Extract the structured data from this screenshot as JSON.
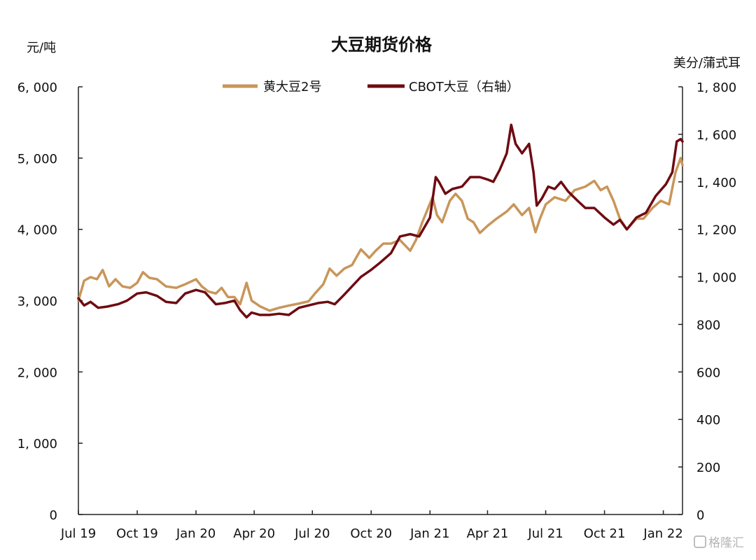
{
  "chart_data": {
    "type": "line",
    "title": "大豆期货价格",
    "left_axis_unit": "元/吨",
    "right_axis_unit": "美分/蒲式耳",
    "x_range": [
      "2019-07-01",
      "2022-01-31"
    ],
    "x_ticks": [
      "Jul 19",
      "Oct 19",
      "Jan 20",
      "Apr 20",
      "Jul 20",
      "Oct 20",
      "Jan 21",
      "Apr 21",
      "Jul 21",
      "Oct 21",
      "Jan 22"
    ],
    "x_tick_dates": [
      "2019-07-01",
      "2019-10-01",
      "2020-01-01",
      "2020-04-01",
      "2020-07-01",
      "2020-10-01",
      "2021-01-01",
      "2021-04-01",
      "2021-07-01",
      "2021-10-01",
      "2022-01-01"
    ],
    "y_left": {
      "min": 0,
      "max": 6000,
      "ticks": [
        0,
        1000,
        2000,
        3000,
        4000,
        5000,
        6000
      ],
      "tick_labels": [
        "0",
        "1, 000",
        "2, 000",
        "3, 000",
        "4, 000",
        "5, 000",
        "6, 000"
      ]
    },
    "y_right": {
      "min": 0,
      "max": 1800,
      "ticks": [
        0,
        200,
        400,
        600,
        800,
        1000,
        1200,
        1400,
        1600,
        1800
      ],
      "tick_labels": [
        "0",
        "200",
        "400",
        "600",
        "800",
        "1, 000",
        "1, 200",
        "1, 400",
        "1, 600",
        "1, 800"
      ]
    },
    "grid": false,
    "legend_position": "top-center",
    "series": [
      {
        "name": "黄大豆2号",
        "axis": "left",
        "color": "#C8965A",
        "points": [
          [
            "2019-07-01",
            3000
          ],
          [
            "2019-07-10",
            3280
          ],
          [
            "2019-07-20",
            3330
          ],
          [
            "2019-07-30",
            3300
          ],
          [
            "2019-08-08",
            3430
          ],
          [
            "2019-08-18",
            3200
          ],
          [
            "2019-08-28",
            3300
          ],
          [
            "2019-09-08",
            3200
          ],
          [
            "2019-09-20",
            3180
          ],
          [
            "2019-10-01",
            3250
          ],
          [
            "2019-10-10",
            3400
          ],
          [
            "2019-10-20",
            3320
          ],
          [
            "2019-11-01",
            3300
          ],
          [
            "2019-11-15",
            3200
          ],
          [
            "2019-12-01",
            3180
          ],
          [
            "2019-12-15",
            3230
          ],
          [
            "2020-01-01",
            3300
          ],
          [
            "2020-01-10",
            3200
          ],
          [
            "2020-01-20",
            3130
          ],
          [
            "2020-02-01",
            3100
          ],
          [
            "2020-02-10",
            3180
          ],
          [
            "2020-02-20",
            3050
          ],
          [
            "2020-03-01",
            3050
          ],
          [
            "2020-03-10",
            2950
          ],
          [
            "2020-03-20",
            3250
          ],
          [
            "2020-03-28",
            3000
          ],
          [
            "2020-04-10",
            2920
          ],
          [
            "2020-04-25",
            2860
          ],
          [
            "2020-05-10",
            2900
          ],
          [
            "2020-05-25",
            2930
          ],
          [
            "2020-06-10",
            2960
          ],
          [
            "2020-06-25",
            2990
          ],
          [
            "2020-07-05",
            3100
          ],
          [
            "2020-07-18",
            3230
          ],
          [
            "2020-07-28",
            3450
          ],
          [
            "2020-08-08",
            3350
          ],
          [
            "2020-08-20",
            3450
          ],
          [
            "2020-09-01",
            3500
          ],
          [
            "2020-09-15",
            3720
          ],
          [
            "2020-09-28",
            3600
          ],
          [
            "2020-10-08",
            3700
          ],
          [
            "2020-10-20",
            3800
          ],
          [
            "2020-11-01",
            3800
          ],
          [
            "2020-11-15",
            3850
          ],
          [
            "2020-12-01",
            3700
          ],
          [
            "2020-12-10",
            3850
          ],
          [
            "2020-12-20",
            4100
          ],
          [
            "2021-01-05",
            4450
          ],
          [
            "2021-01-12",
            4200
          ],
          [
            "2021-01-20",
            4100
          ],
          [
            "2021-02-01",
            4400
          ],
          [
            "2021-02-10",
            4500
          ],
          [
            "2021-02-20",
            4400
          ],
          [
            "2021-03-01",
            4150
          ],
          [
            "2021-03-10",
            4100
          ],
          [
            "2021-03-20",
            3950
          ],
          [
            "2021-04-01",
            4050
          ],
          [
            "2021-04-15",
            4150
          ],
          [
            "2021-05-01",
            4250
          ],
          [
            "2021-05-12",
            4350
          ],
          [
            "2021-05-25",
            4200
          ],
          [
            "2021-06-05",
            4300
          ],
          [
            "2021-06-15",
            3960
          ],
          [
            "2021-06-22",
            4150
          ],
          [
            "2021-07-01",
            4350
          ],
          [
            "2021-07-15",
            4450
          ],
          [
            "2021-08-01",
            4400
          ],
          [
            "2021-08-15",
            4550
          ],
          [
            "2021-09-01",
            4600
          ],
          [
            "2021-09-15",
            4680
          ],
          [
            "2021-09-25",
            4550
          ],
          [
            "2021-10-05",
            4600
          ],
          [
            "2021-10-15",
            4400
          ],
          [
            "2021-10-25",
            4150
          ],
          [
            "2021-11-05",
            4000
          ],
          [
            "2021-11-20",
            4150
          ],
          [
            "2021-12-01",
            4150
          ],
          [
            "2021-12-15",
            4300
          ],
          [
            "2021-12-28",
            4400
          ],
          [
            "2022-01-10",
            4350
          ],
          [
            "2022-01-20",
            4800
          ],
          [
            "2022-01-28",
            5000
          ],
          [
            "2022-01-31",
            4900
          ]
        ]
      },
      {
        "name": "CBOT大豆（右轴）",
        "axis": "right",
        "color": "#6E0B12",
        "points": [
          [
            "2019-07-01",
            910
          ],
          [
            "2019-07-10",
            880
          ],
          [
            "2019-07-20",
            895
          ],
          [
            "2019-08-01",
            870
          ],
          [
            "2019-08-15",
            875
          ],
          [
            "2019-09-01",
            885
          ],
          [
            "2019-09-15",
            900
          ],
          [
            "2019-10-01",
            930
          ],
          [
            "2019-10-15",
            935
          ],
          [
            "2019-11-01",
            920
          ],
          [
            "2019-11-15",
            895
          ],
          [
            "2019-12-01",
            890
          ],
          [
            "2019-12-15",
            930
          ],
          [
            "2020-01-01",
            945
          ],
          [
            "2020-01-15",
            935
          ],
          [
            "2020-02-01",
            885
          ],
          [
            "2020-02-15",
            890
          ],
          [
            "2020-03-01",
            900
          ],
          [
            "2020-03-10",
            860
          ],
          [
            "2020-03-20",
            830
          ],
          [
            "2020-03-28",
            850
          ],
          [
            "2020-04-10",
            840
          ],
          [
            "2020-04-25",
            840
          ],
          [
            "2020-05-10",
            845
          ],
          [
            "2020-05-25",
            840
          ],
          [
            "2020-06-10",
            870
          ],
          [
            "2020-06-25",
            880
          ],
          [
            "2020-07-10",
            890
          ],
          [
            "2020-07-25",
            895
          ],
          [
            "2020-08-05",
            885
          ],
          [
            "2020-08-18",
            920
          ],
          [
            "2020-09-01",
            960
          ],
          [
            "2020-09-15",
            1000
          ],
          [
            "2020-10-01",
            1030
          ],
          [
            "2020-10-15",
            1060
          ],
          [
            "2020-11-01",
            1100
          ],
          [
            "2020-11-15",
            1170
          ],
          [
            "2020-12-01",
            1180
          ],
          [
            "2020-12-15",
            1170
          ],
          [
            "2021-01-01",
            1250
          ],
          [
            "2021-01-10",
            1420
          ],
          [
            "2021-01-15",
            1400
          ],
          [
            "2021-01-25",
            1350
          ],
          [
            "2021-02-05",
            1370
          ],
          [
            "2021-02-20",
            1380
          ],
          [
            "2021-03-05",
            1420
          ],
          [
            "2021-03-20",
            1420
          ],
          [
            "2021-04-01",
            1410
          ],
          [
            "2021-04-10",
            1400
          ],
          [
            "2021-04-20",
            1450
          ],
          [
            "2021-05-01",
            1520
          ],
          [
            "2021-05-08",
            1640
          ],
          [
            "2021-05-15",
            1560
          ],
          [
            "2021-05-25",
            1520
          ],
          [
            "2021-06-05",
            1560
          ],
          [
            "2021-06-12",
            1440
          ],
          [
            "2021-06-17",
            1300
          ],
          [
            "2021-06-25",
            1330
          ],
          [
            "2021-07-05",
            1380
          ],
          [
            "2021-07-15",
            1370
          ],
          [
            "2021-07-25",
            1400
          ],
          [
            "2021-08-05",
            1360
          ],
          [
            "2021-08-20",
            1320
          ],
          [
            "2021-09-01",
            1290
          ],
          [
            "2021-09-15",
            1290
          ],
          [
            "2021-10-01",
            1250
          ],
          [
            "2021-10-15",
            1220
          ],
          [
            "2021-10-25",
            1240
          ],
          [
            "2021-11-05",
            1200
          ],
          [
            "2021-11-20",
            1250
          ],
          [
            "2021-12-05",
            1270
          ],
          [
            "2021-12-20",
            1340
          ],
          [
            "2022-01-05",
            1390
          ],
          [
            "2022-01-15",
            1440
          ],
          [
            "2022-01-22",
            1570
          ],
          [
            "2022-01-28",
            1580
          ],
          [
            "2022-01-31",
            1570
          ]
        ]
      }
    ]
  },
  "watermark": "格隆汇"
}
